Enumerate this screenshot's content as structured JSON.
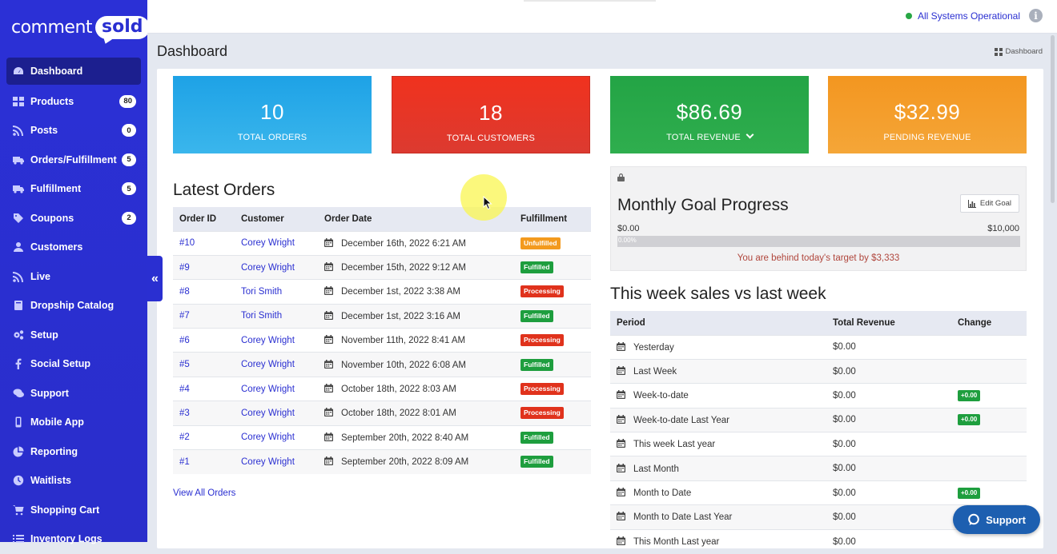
{
  "brand": {
    "word": "comment",
    "bubble": "sold"
  },
  "sidebar": {
    "items": [
      {
        "label": "Dashboard",
        "icon": "dashboard-icon",
        "badge": ""
      },
      {
        "label": "Products",
        "icon": "grid-icon",
        "badge": "80"
      },
      {
        "label": "Posts",
        "icon": "rss-icon",
        "badge": "0"
      },
      {
        "label": "Orders/Fulfillment",
        "icon": "truck-icon",
        "badge": "5"
      },
      {
        "label": "Fulfillment",
        "icon": "truck-icon",
        "badge": "5"
      },
      {
        "label": "Coupons",
        "icon": "tag-icon",
        "badge": "2"
      },
      {
        "label": "Customers",
        "icon": "user-icon",
        "badge": ""
      },
      {
        "label": "Live",
        "icon": "rss-icon",
        "badge": ""
      },
      {
        "label": "Dropship Catalog",
        "icon": "book-icon",
        "badge": ""
      },
      {
        "label": "Setup",
        "icon": "cogs-icon",
        "badge": ""
      },
      {
        "label": "Social Setup",
        "icon": "facebook-icon",
        "badge": ""
      },
      {
        "label": "Support",
        "icon": "comments-icon",
        "badge": ""
      },
      {
        "label": "Mobile App",
        "icon": "mobile-icon",
        "badge": ""
      },
      {
        "label": "Reporting",
        "icon": "pie-chart-icon",
        "badge": ""
      },
      {
        "label": "Waitlists",
        "icon": "clock-icon",
        "badge": ""
      },
      {
        "label": "Shopping Cart",
        "icon": "cart-icon",
        "badge": ""
      },
      {
        "label": "Inventory Logs",
        "icon": "list-icon",
        "badge": ""
      }
    ],
    "collapse": "«"
  },
  "topbar": {
    "status": "All Systems Operational",
    "info": "i"
  },
  "page": {
    "title": "Dashboard",
    "breadcrumb": "Dashboard"
  },
  "stats": [
    {
      "value": "10",
      "label": "TOTAL ORDERS"
    },
    {
      "value": "18",
      "label": "TOTAL CUSTOMERS"
    },
    {
      "value": "$86.69",
      "label": "TOTAL REVENUE"
    },
    {
      "value": "$32.99",
      "label": "PENDING REVENUE"
    }
  ],
  "orders": {
    "title": "Latest Orders",
    "headers": [
      "Order ID",
      "Customer",
      "Order Date",
      "Fulfillment"
    ],
    "rows": [
      {
        "id": "#10",
        "customer": "Corey Wright",
        "date": "December 16th, 2022 6:21 AM",
        "status": "Unfulfilled"
      },
      {
        "id": "#9",
        "customer": "Corey Wright",
        "date": "December 15th, 2022 9:12 AM",
        "status": "Fulfilled"
      },
      {
        "id": "#8",
        "customer": "Tori Smith",
        "date": "December 1st, 2022 3:38 AM",
        "status": "Processing"
      },
      {
        "id": "#7",
        "customer": "Tori Smith",
        "date": "December 1st, 2022 3:16 AM",
        "status": "Fulfilled"
      },
      {
        "id": "#6",
        "customer": "Corey Wright",
        "date": "November 11th, 2022 8:41 AM",
        "status": "Processing"
      },
      {
        "id": "#5",
        "customer": "Corey Wright",
        "date": "November 10th, 2022 6:08 AM",
        "status": "Fulfilled"
      },
      {
        "id": "#4",
        "customer": "Corey Wright",
        "date": "October 18th, 2022 8:03 AM",
        "status": "Processing"
      },
      {
        "id": "#3",
        "customer": "Corey Wright",
        "date": "October 18th, 2022 8:01 AM",
        "status": "Processing"
      },
      {
        "id": "#2",
        "customer": "Corey Wright",
        "date": "September 20th, 2022 8:40 AM",
        "status": "Fulfilled"
      },
      {
        "id": "#1",
        "customer": "Corey Wright",
        "date": "September 20th, 2022 8:09 AM",
        "status": "Fulfilled"
      }
    ],
    "view_all": "View All Orders"
  },
  "goal": {
    "title": "Monthly Goal Progress",
    "edit_label": "Edit Goal",
    "min": "$0.00",
    "max": "$10,000",
    "progress_fraction": 0,
    "progress_text": "0.00%",
    "message": "You are behind today's target by $3,333"
  },
  "weekly": {
    "title": "This week sales vs last week",
    "headers": [
      "Period",
      "Total Revenue",
      "Change"
    ],
    "rows": [
      {
        "period": "Yesterday",
        "revenue": "$0.00",
        "change": ""
      },
      {
        "period": "Last Week",
        "revenue": "$0.00",
        "change": ""
      },
      {
        "period": "Week-to-date",
        "revenue": "$0.00",
        "change": "+0.00"
      },
      {
        "period": "Week-to-date Last Year",
        "revenue": "$0.00",
        "change": "+0.00"
      },
      {
        "period": "This week Last year",
        "revenue": "$0.00",
        "change": ""
      },
      {
        "period": "Last Month",
        "revenue": "$0.00",
        "change": ""
      },
      {
        "period": "Month to Date",
        "revenue": "$0.00",
        "change": "+0.00"
      },
      {
        "period": "Month to Date Last Year",
        "revenue": "$0.00",
        "change": ""
      },
      {
        "period": "This Month Last year",
        "revenue": "$0.00",
        "change": ""
      }
    ]
  },
  "support": {
    "label": "Support"
  },
  "colors": {
    "sidebar": "#2a2fd1",
    "total_orders": "#1ea2e6",
    "total_customers": "#f0321e",
    "total_revenue": "#23a445",
    "pending_revenue": "#f39620",
    "unfulfilled": "#f39a1e",
    "fulfilled": "#1e9e3e",
    "processing": "#e0321c",
    "link": "#2a2fd1"
  }
}
